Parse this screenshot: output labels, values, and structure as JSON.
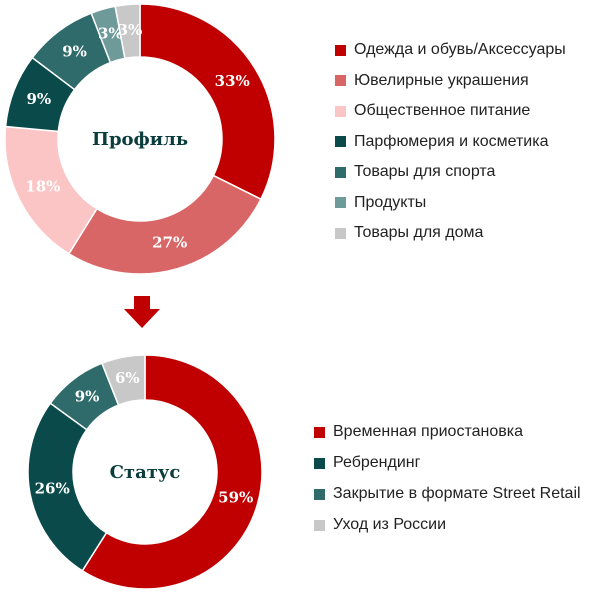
{
  "colors": {
    "center_text": "#0b3d3d",
    "arrow": "#c00000"
  },
  "chart_data": [
    {
      "type": "pie",
      "center_label": "Профиль",
      "categories": [
        "Одежда и обувь/Аксессуары",
        "Ювелирные украшения",
        "Общественное питание",
        "Парфюмерия и косметика",
        "Товары для спорта",
        "Продукты",
        "Товары для дома"
      ],
      "values": [
        33,
        27,
        18,
        9,
        9,
        3,
        3
      ],
      "labels": [
        "33%",
        "27%",
        "18%",
        "9%",
        "9%",
        "3%",
        "3%"
      ],
      "colors": [
        "#c00000",
        "#d96666",
        "#fbc5c5",
        "#0b4a4a",
        "#2f6b6b",
        "#6f9a9a",
        "#c8c8c8"
      ],
      "legend_position": "right"
    },
    {
      "type": "pie",
      "center_label": "Статус",
      "categories": [
        "Временная приостановка",
        "Ребрендинг",
        "Закрытие в формате Street Retail",
        "Уход из России"
      ],
      "values": [
        59,
        26,
        9,
        6
      ],
      "labels": [
        "59%",
        "26%",
        "9%",
        "6%"
      ],
      "colors": [
        "#c00000",
        "#0b4a4a",
        "#2f6b6b",
        "#c8c8c8"
      ],
      "legend_position": "right"
    }
  ]
}
